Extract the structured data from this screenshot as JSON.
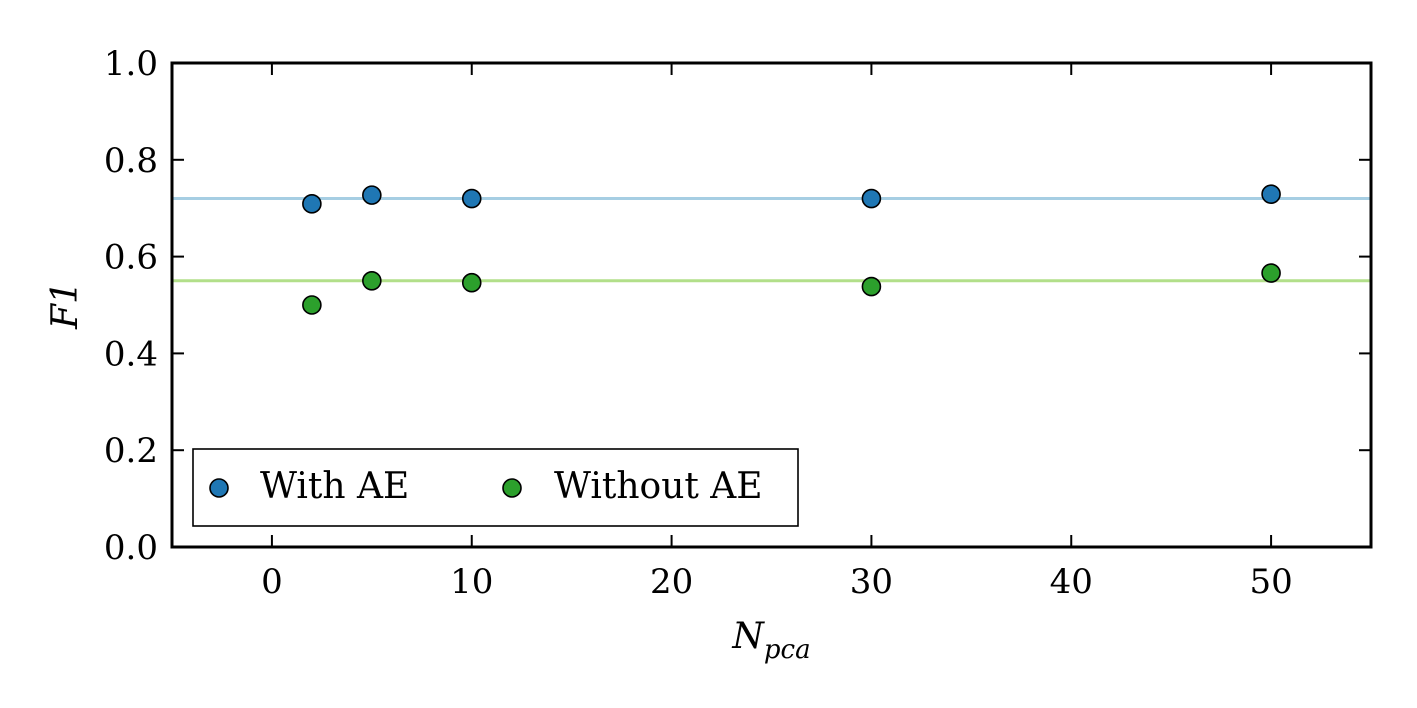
{
  "chart_data": {
    "type": "scatter",
    "title": "",
    "xlabel_main": "N",
    "xlabel_sub": "pca",
    "ylabel": "F1",
    "xlim": [
      -5,
      55
    ],
    "ylim": [
      0.0,
      1.0
    ],
    "xticks": [
      0,
      10,
      20,
      30,
      40,
      50
    ],
    "xtick_labels": [
      "0",
      "10",
      "20",
      "30",
      "40",
      "50"
    ],
    "yticks": [
      0.0,
      0.2,
      0.4,
      0.6,
      0.8,
      1.0
    ],
    "ytick_labels": [
      "0.0",
      "0.2",
      "0.4",
      "0.6",
      "0.8",
      "1.0"
    ],
    "grid": false,
    "legend_position": "lower-left",
    "series": [
      {
        "name": "With AE",
        "color": "#1f77b4",
        "x": [
          2,
          5,
          10,
          30,
          50
        ],
        "y": [
          0.709,
          0.727,
          0.72,
          0.72,
          0.729
        ]
      },
      {
        "name": "Without AE",
        "color": "#2ca02c",
        "x": [
          2,
          5,
          10,
          30,
          50
        ],
        "y": [
          0.5,
          0.55,
          0.546,
          0.538,
          0.566
        ]
      }
    ],
    "reference_lines": [
      {
        "y": 0.72,
        "color": "#a6cee3"
      },
      {
        "y": 0.55,
        "color": "#b2df8a"
      }
    ]
  }
}
